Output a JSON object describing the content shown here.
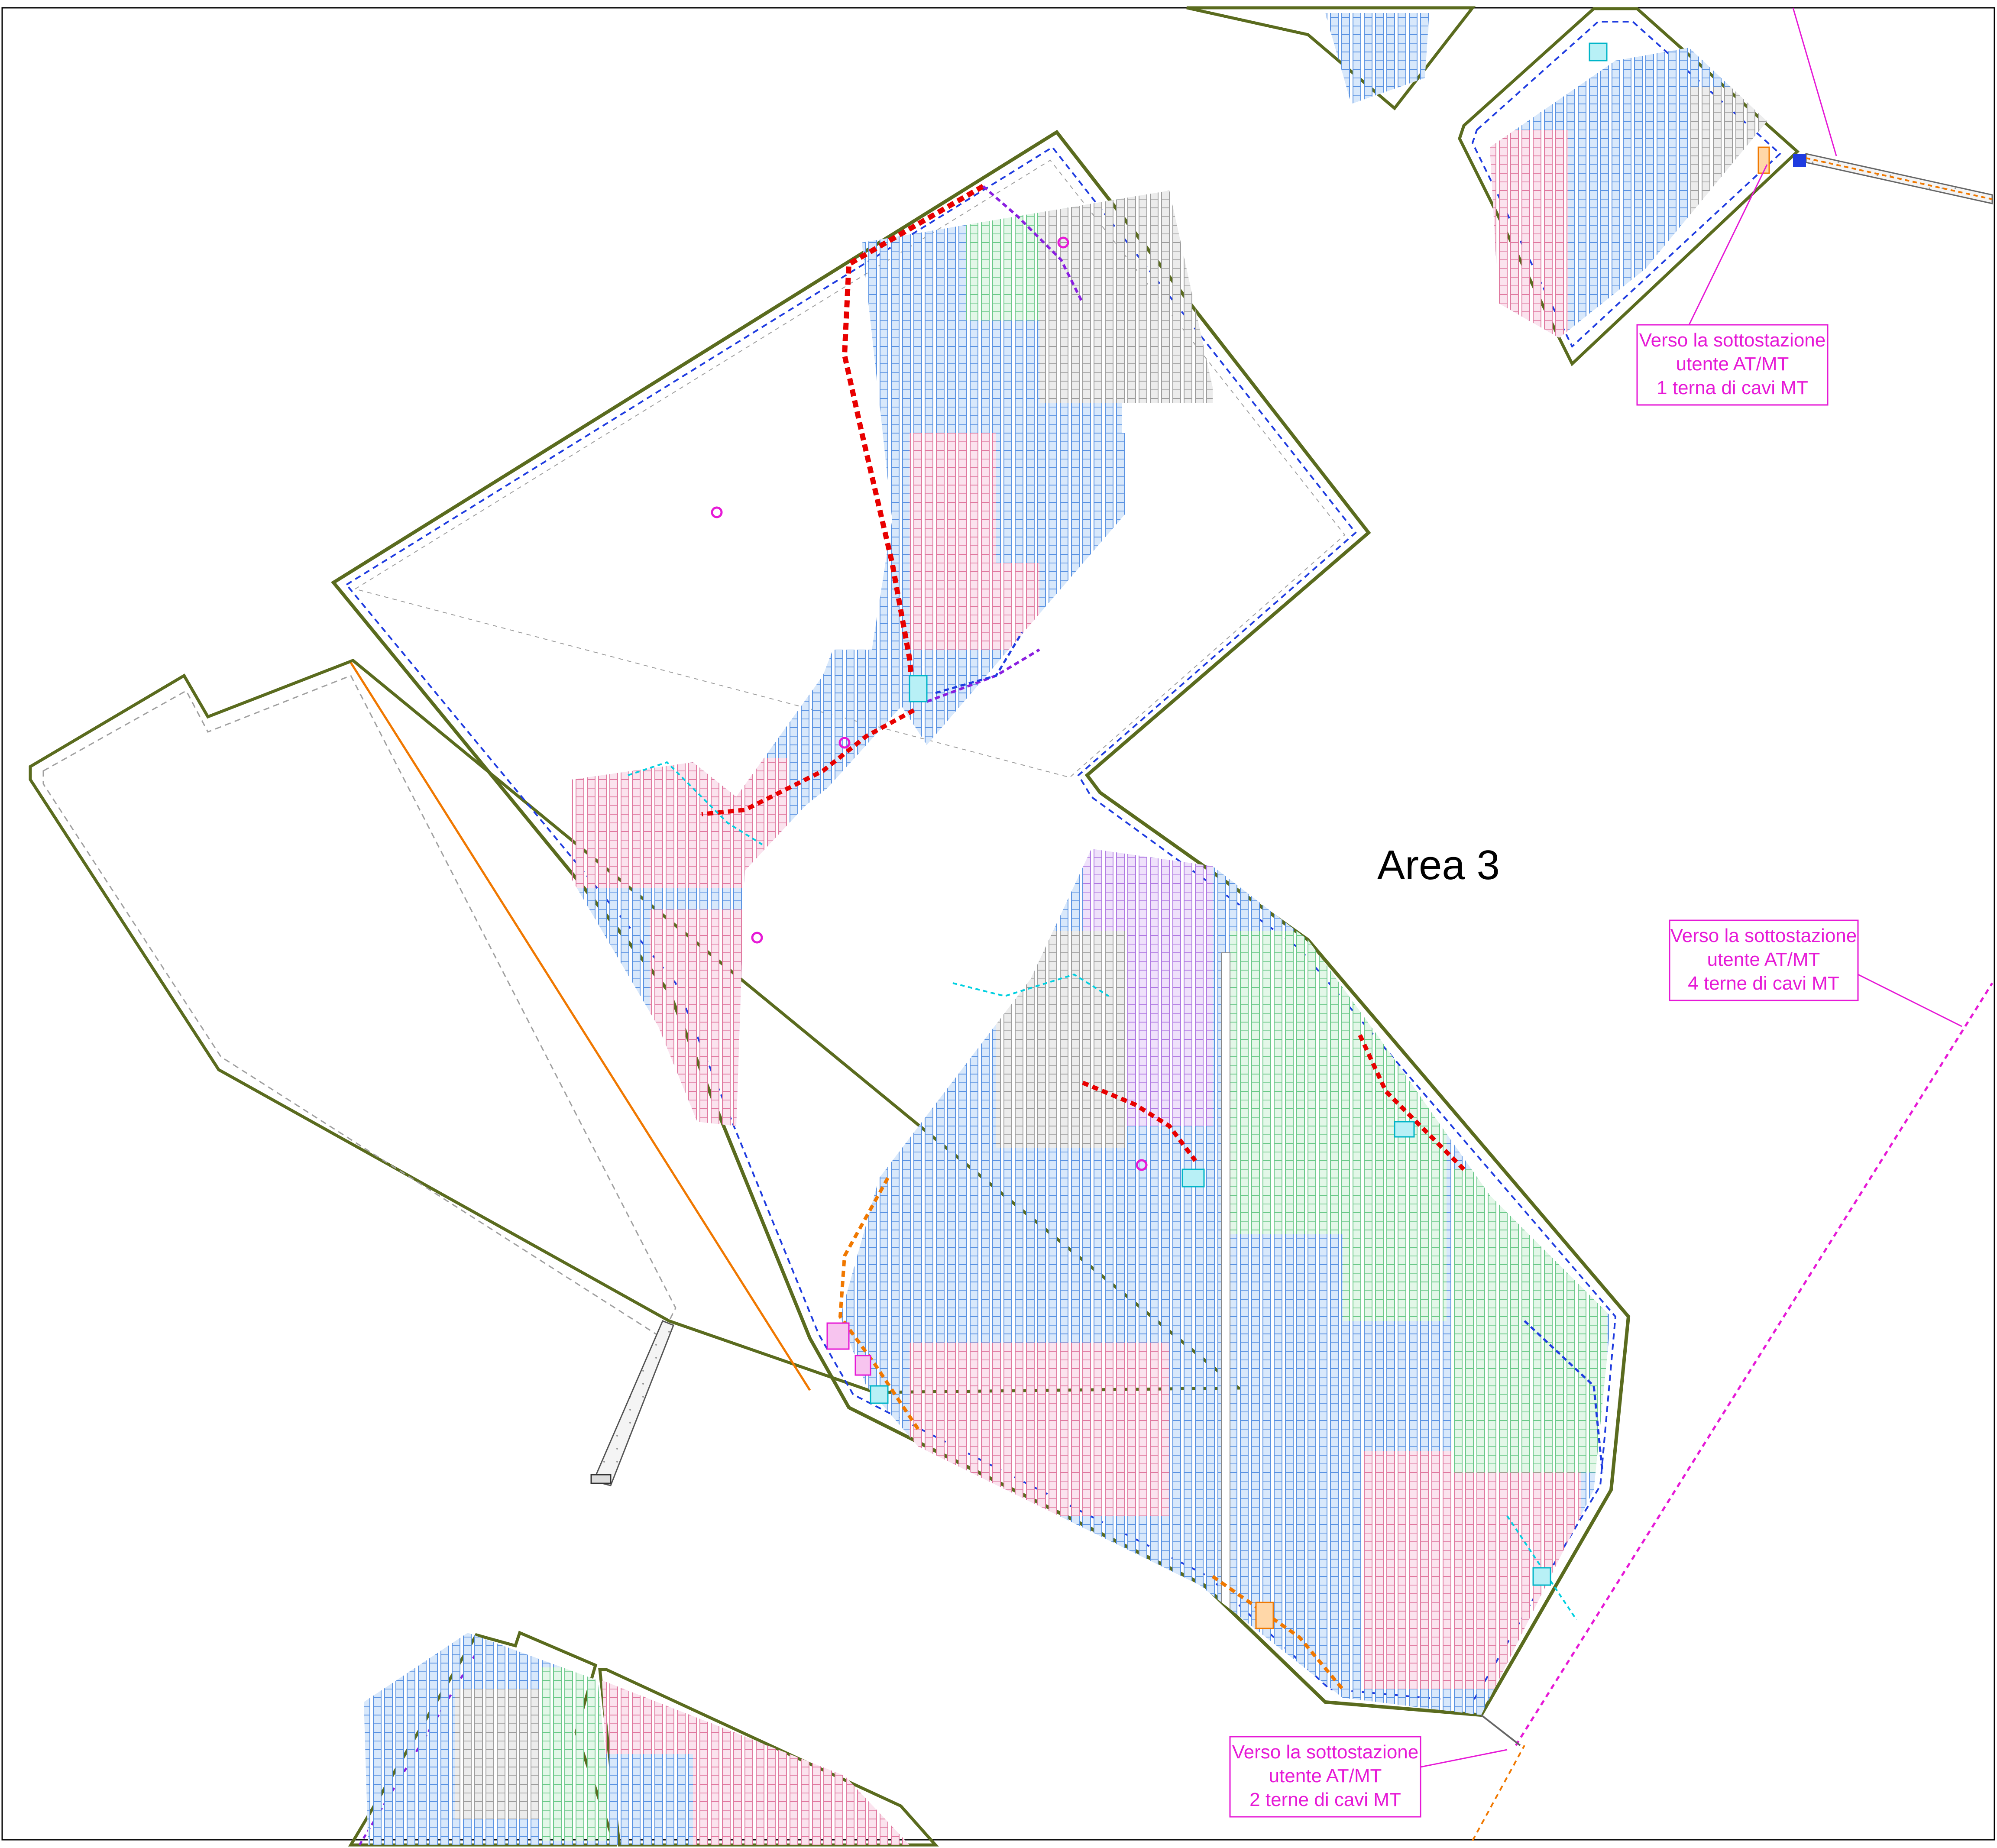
{
  "area_label": "Area 3",
  "callouts": [
    {
      "id": "nord-est",
      "lines": [
        "Verso la sottostazione",
        "utente AT/MT",
        "1 terna di cavi MT"
      ]
    },
    {
      "id": "est",
      "lines": [
        "Verso la sottostazione",
        "utente AT/MT",
        "4 terne di cavi MT"
      ]
    },
    {
      "id": "sud",
      "lines": [
        "Verso la sottostazione",
        "utente AT/MT",
        "2 terne di cavi MT"
      ]
    }
  ],
  "colors": {
    "fence": "#5a6b1e",
    "road": "#9a9a9a",
    "cable_mt": "#e80000",
    "cable_lv": "#1f3ce0",
    "cable_aux": "#00d0e0",
    "cable_violet": "#8a1ee0",
    "cable_orange": "#f07800",
    "callout": "#e619d6",
    "module_blue": "#6aa4ea",
    "module_pink": "#e87aa8",
    "module_green": "#8ad89a",
    "module_grey": "#a6a6a6",
    "module_violet": "#b27ae6"
  },
  "icons": [
    "inverter-station-icon",
    "survey-marker-icon"
  ]
}
